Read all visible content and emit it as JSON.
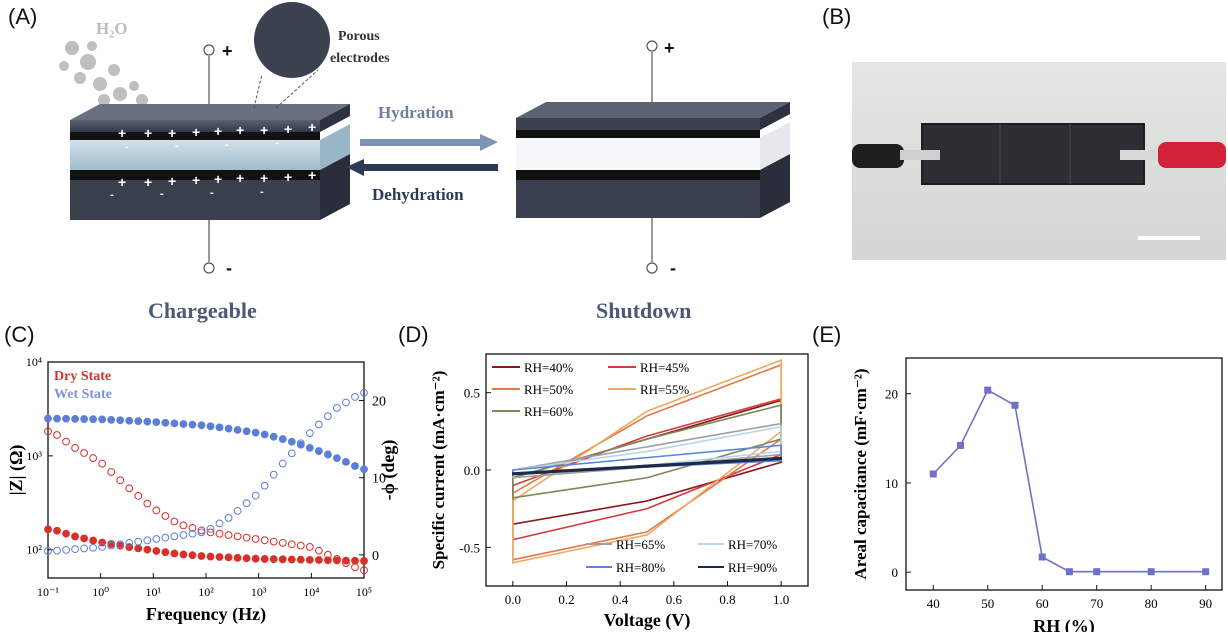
{
  "panels": {
    "a": "(A)",
    "b": "(B)",
    "c": "(C)",
    "d": "(D)",
    "e": "(E)"
  },
  "schematic": {
    "vapor_label": "H₂O",
    "porous_label_1": "Porous",
    "porous_label_2": "electrodes",
    "hydration_label": "Hydration",
    "dehydration_label": "Dehydration",
    "left_caption": "Chargeable",
    "right_caption": "Shutdown",
    "plus_sign": "+",
    "minus_sign": "-",
    "colors": {
      "electrode": "#363b48",
      "electrolyte": "#a9c4d2",
      "shutdown_fill": "#f6f7f8",
      "arrow_hydration": "#7d93b3",
      "arrow_dehydration": "#2c3a56",
      "caption": "#4a5a78"
    }
  },
  "chart_data": [
    {
      "id": "C",
      "type": "scatter",
      "xlabel": "Frequency (Hz)",
      "ylabel": "|Z| (Ω)",
      "y2label": "-ϕ (deg)",
      "xscale": "log",
      "yscale": "log",
      "xlim": [
        0.1,
        100000
      ],
      "ylim": [
        50,
        10000
      ],
      "y2lim": [
        -3,
        25
      ],
      "x_ticks": [
        "10⁻¹",
        "10⁰",
        "10¹",
        "10²",
        "10³",
        "10⁴",
        "10⁵"
      ],
      "y_ticks": [
        "10²",
        "10³",
        "10⁴"
      ],
      "y2_ticks": [
        "0",
        "10",
        "20"
      ],
      "legend": [
        "Dry State",
        "Wet State"
      ],
      "legend_position": "top-left",
      "series": [
        {
          "name": "Dry State",
          "axis": "left",
          "filled": true,
          "color": "#d9302a",
          "x": [
            0.12,
            0.3,
            1,
            3,
            10,
            30,
            100,
            1000,
            10000,
            90000
          ],
          "values": [
            165,
            140,
            120,
            108,
            98,
            90,
            85,
            80,
            78,
            76
          ]
        },
        {
          "name": "Wet State",
          "axis": "left",
          "filled": true,
          "color": "#5b7fd6",
          "x": [
            0.12,
            1,
            10,
            100,
            1000,
            3000,
            10000,
            30000,
            90000
          ],
          "values": [
            2500,
            2450,
            2300,
            2100,
            1750,
            1500,
            1200,
            950,
            720
          ]
        },
        {
          "name": "Dry State",
          "axis": "right",
          "filled": false,
          "color": "#d9302a",
          "x": [
            0.12,
            0.3,
            1,
            3,
            10,
            30,
            100,
            1000,
            10000,
            90000
          ],
          "values": [
            16,
            14,
            12,
            9,
            6,
            4,
            3,
            2,
            1,
            -2
          ]
        },
        {
          "name": "Wet State",
          "axis": "right",
          "filled": false,
          "color": "#5b7fd6",
          "x": [
            0.12,
            1,
            10,
            100,
            300,
            1000,
            3000,
            10000,
            30000,
            90000
          ],
          "values": [
            0.5,
            1,
            2,
            3,
            5,
            8,
            12,
            16,
            19,
            21
          ]
        }
      ]
    },
    {
      "id": "D",
      "type": "line",
      "xlabel": "Voltage (V)",
      "ylabel": "Specific current (mA·cm⁻²)",
      "xlim": [
        -0.1,
        1.1
      ],
      "ylim": [
        -0.75,
        0.75
      ],
      "x_ticks": [
        "0.0",
        "0.2",
        "0.4",
        "0.6",
        "0.8",
        "1.0"
      ],
      "y_ticks": [
        "-0.5",
        "0.0",
        "0.5"
      ],
      "legend_top": [
        "RH=40%",
        "RH=45%",
        "RH=50%",
        "RH=55%",
        "RH=60%"
      ],
      "legend_bottom": [
        "RH=65%",
        "RH=70%",
        "RH=80%",
        "RH=90%"
      ],
      "series": [
        {
          "name": "RH=40%",
          "color": "#8b1a1a",
          "upper": [
            [
              0,
              -0.05
            ],
            [
              0.5,
              0.2
            ],
            [
              1,
              0.45
            ]
          ],
          "lower": [
            [
              0,
              -0.35
            ],
            [
              0.5,
              -0.2
            ],
            [
              1,
              0.05
            ]
          ]
        },
        {
          "name": "RH=45%",
          "color": "#d43c3c",
          "upper": [
            [
              0,
              -0.1
            ],
            [
              0.5,
              0.22
            ],
            [
              1,
              0.46
            ]
          ],
          "lower": [
            [
              0,
              -0.45
            ],
            [
              0.5,
              -0.25
            ],
            [
              1,
              0.1
            ]
          ]
        },
        {
          "name": "RH=50%",
          "color": "#e07a4a",
          "upper": [
            [
              0,
              -0.15
            ],
            [
              0.5,
              0.35
            ],
            [
              1,
              0.68
            ]
          ],
          "lower": [
            [
              0,
              -0.58
            ],
            [
              0.5,
              -0.4
            ],
            [
              1,
              0.2
            ]
          ]
        },
        {
          "name": "RH=55%",
          "color": "#f2a860",
          "upper": [
            [
              0,
              -0.2
            ],
            [
              0.5,
              0.38
            ],
            [
              1,
              0.71
            ]
          ],
          "lower": [
            [
              0,
              -0.6
            ],
            [
              0.5,
              -0.42
            ],
            [
              1,
              0.25
            ]
          ]
        },
        {
          "name": "RH=60%",
          "color": "#7a8a5a",
          "upper": [
            [
              0,
              -0.05
            ],
            [
              0.5,
              0.2
            ],
            [
              1,
              0.42
            ]
          ],
          "lower": [
            [
              0,
              -0.18
            ],
            [
              0.5,
              -0.05
            ],
            [
              1,
              0.2
            ]
          ]
        },
        {
          "name": "RH=65%",
          "color": "#a0a0a0",
          "upper": [
            [
              0,
              0.0
            ],
            [
              0.5,
              0.15
            ],
            [
              1,
              0.3
            ]
          ],
          "lower": [
            [
              0,
              -0.05
            ],
            [
              0.5,
              0.02
            ],
            [
              1,
              0.1
            ]
          ]
        },
        {
          "name": "RH=70%",
          "color": "#b8d4f0",
          "upper": [
            [
              0,
              0.0
            ],
            [
              0.5,
              0.12
            ],
            [
              1,
              0.28
            ]
          ],
          "lower": [
            [
              0,
              -0.03
            ],
            [
              0.5,
              0.03
            ],
            [
              1,
              0.12
            ]
          ]
        },
        {
          "name": "RH=80%",
          "color": "#5b86d6",
          "upper": [
            [
              0,
              0.0
            ],
            [
              0.5,
              0.08
            ],
            [
              1,
              0.16
            ]
          ],
          "lower": [
            [
              0,
              -0.02
            ],
            [
              0.5,
              0.02
            ],
            [
              1,
              0.06
            ]
          ]
        },
        {
          "name": "RH=90%",
          "color": "#1e2a4a",
          "upper": [
            [
              0,
              -0.02
            ],
            [
              0.5,
              0.03
            ],
            [
              1,
              0.08
            ]
          ],
          "lower": [
            [
              0,
              -0.03
            ],
            [
              0.5,
              0.02
            ],
            [
              1,
              0.07
            ]
          ]
        }
      ]
    },
    {
      "id": "E",
      "type": "line",
      "xlabel": "RH (%)",
      "ylabel": "Areal capacitance (mF·cm⁻²)",
      "xlim": [
        35,
        93
      ],
      "ylim": [
        -2,
        24
      ],
      "x_ticks": [
        "40",
        "50",
        "60",
        "70",
        "80",
        "90"
      ],
      "y_ticks": [
        "0",
        "10",
        "20"
      ],
      "color": "#7070c8",
      "x": [
        40,
        45,
        50,
        55,
        60,
        65,
        70,
        80,
        90
      ],
      "values": [
        11,
        14.2,
        20.4,
        18.7,
        1.7,
        0.05,
        0.05,
        0.05,
        0.05
      ]
    }
  ]
}
